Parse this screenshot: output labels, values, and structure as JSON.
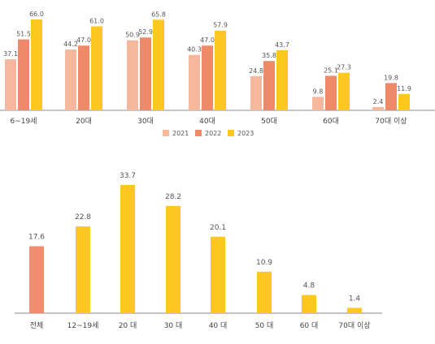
{
  "chart_data": [
    {
      "type": "bar",
      "title": "",
      "xlabel": "",
      "ylabel": "",
      "categories": [
        "6~19세",
        "20대",
        "30대",
        "40대",
        "50대",
        "60대",
        "70대 이상"
      ],
      "series": [
        {
          "name": "2021",
          "color": "#F6B89C",
          "values": [
            37.1,
            44.2,
            50.9,
            40.3,
            24.8,
            9.8,
            2.4
          ]
        },
        {
          "name": "2022",
          "color": "#EE8A68",
          "values": [
            51.5,
            47.0,
            52.9,
            47.0,
            35.8,
            25.1,
            19.8
          ]
        },
        {
          "name": "2023",
          "color": "#FFC820",
          "values": [
            66.0,
            61.0,
            65.8,
            57.9,
            43.7,
            27.3,
            11.9
          ]
        }
      ],
      "ylim": [
        0,
        66.0
      ],
      "grid": false,
      "legend_position": "bottom"
    },
    {
      "type": "bar",
      "title": "",
      "xlabel": "",
      "ylabel": "",
      "categories": [
        "전체",
        "12~19세",
        "20 대",
        "30 대",
        "40 대",
        "50 대",
        "60 대",
        "70대 이상"
      ],
      "values": [
        17.6,
        22.8,
        33.7,
        28.2,
        20.1,
        10.9,
        4.8,
        1.4
      ],
      "colors": [
        "#F28C6E",
        "#FFC820",
        "#FFC820",
        "#FFC820",
        "#FFC820",
        "#FFC820",
        "#FFC820",
        "#FFC820"
      ],
      "ylim": [
        0,
        33.7
      ],
      "grid": false
    }
  ]
}
